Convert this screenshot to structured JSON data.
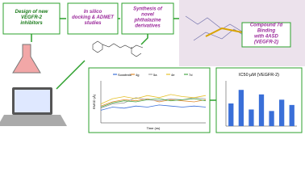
{
  "boxes": {
    "design": "Design of new VEGFR-2 inhibitors",
    "docking": "In silico docking & ADMET studies",
    "synthesis": "Synthesis of novel phthalazine derivatives",
    "binding": "Compound 7d Binding with 4ASD (VEGFR-2)"
  },
  "rmsd_chart": {
    "x_label": "Time (ns)",
    "y_label": "RMSD (Å)",
    "ylim": [
      0,
      4
    ],
    "series": [
      {
        "name": "Sorafenib",
        "color": "#3a6fd8",
        "values": [
          1.2,
          1.5,
          1.4,
          1.6,
          1.5,
          1.7,
          1.6,
          1.5,
          1.6,
          1.5
        ]
      },
      {
        "name": "4g",
        "color": "#e08a2e",
        "values": [
          1.6,
          2.0,
          2.2,
          2.1,
          2.3,
          2.0,
          2.2,
          2.1,
          2.0,
          2.2
        ]
      },
      {
        "name": "5a",
        "color": "#a0a0a0",
        "values": [
          1.4,
          1.8,
          1.9,
          2.4,
          2.2,
          2.1,
          2.3,
          2.2,
          2.4,
          2.3
        ]
      },
      {
        "name": "4e",
        "color": "#e6c12a",
        "values": [
          1.8,
          2.3,
          2.5,
          2.3,
          2.6,
          2.4,
          2.7,
          2.5,
          2.4,
          2.6
        ]
      },
      {
        "name": "7d",
        "color": "#4aa84a",
        "values": [
          1.5,
          1.9,
          2.1,
          2.0,
          2.2,
          2.3,
          2.1,
          2.2,
          2.3,
          2.1
        ]
      }
    ]
  },
  "ic50_chart": {
    "title": "IC50 µM (VEGFR-2)",
    "ylim": [
      0,
      0.6
    ],
    "color": "#3a6fd8",
    "values": [
      0.3,
      0.48,
      0.22,
      0.42,
      0.2,
      0.35,
      0.28
    ]
  }
}
